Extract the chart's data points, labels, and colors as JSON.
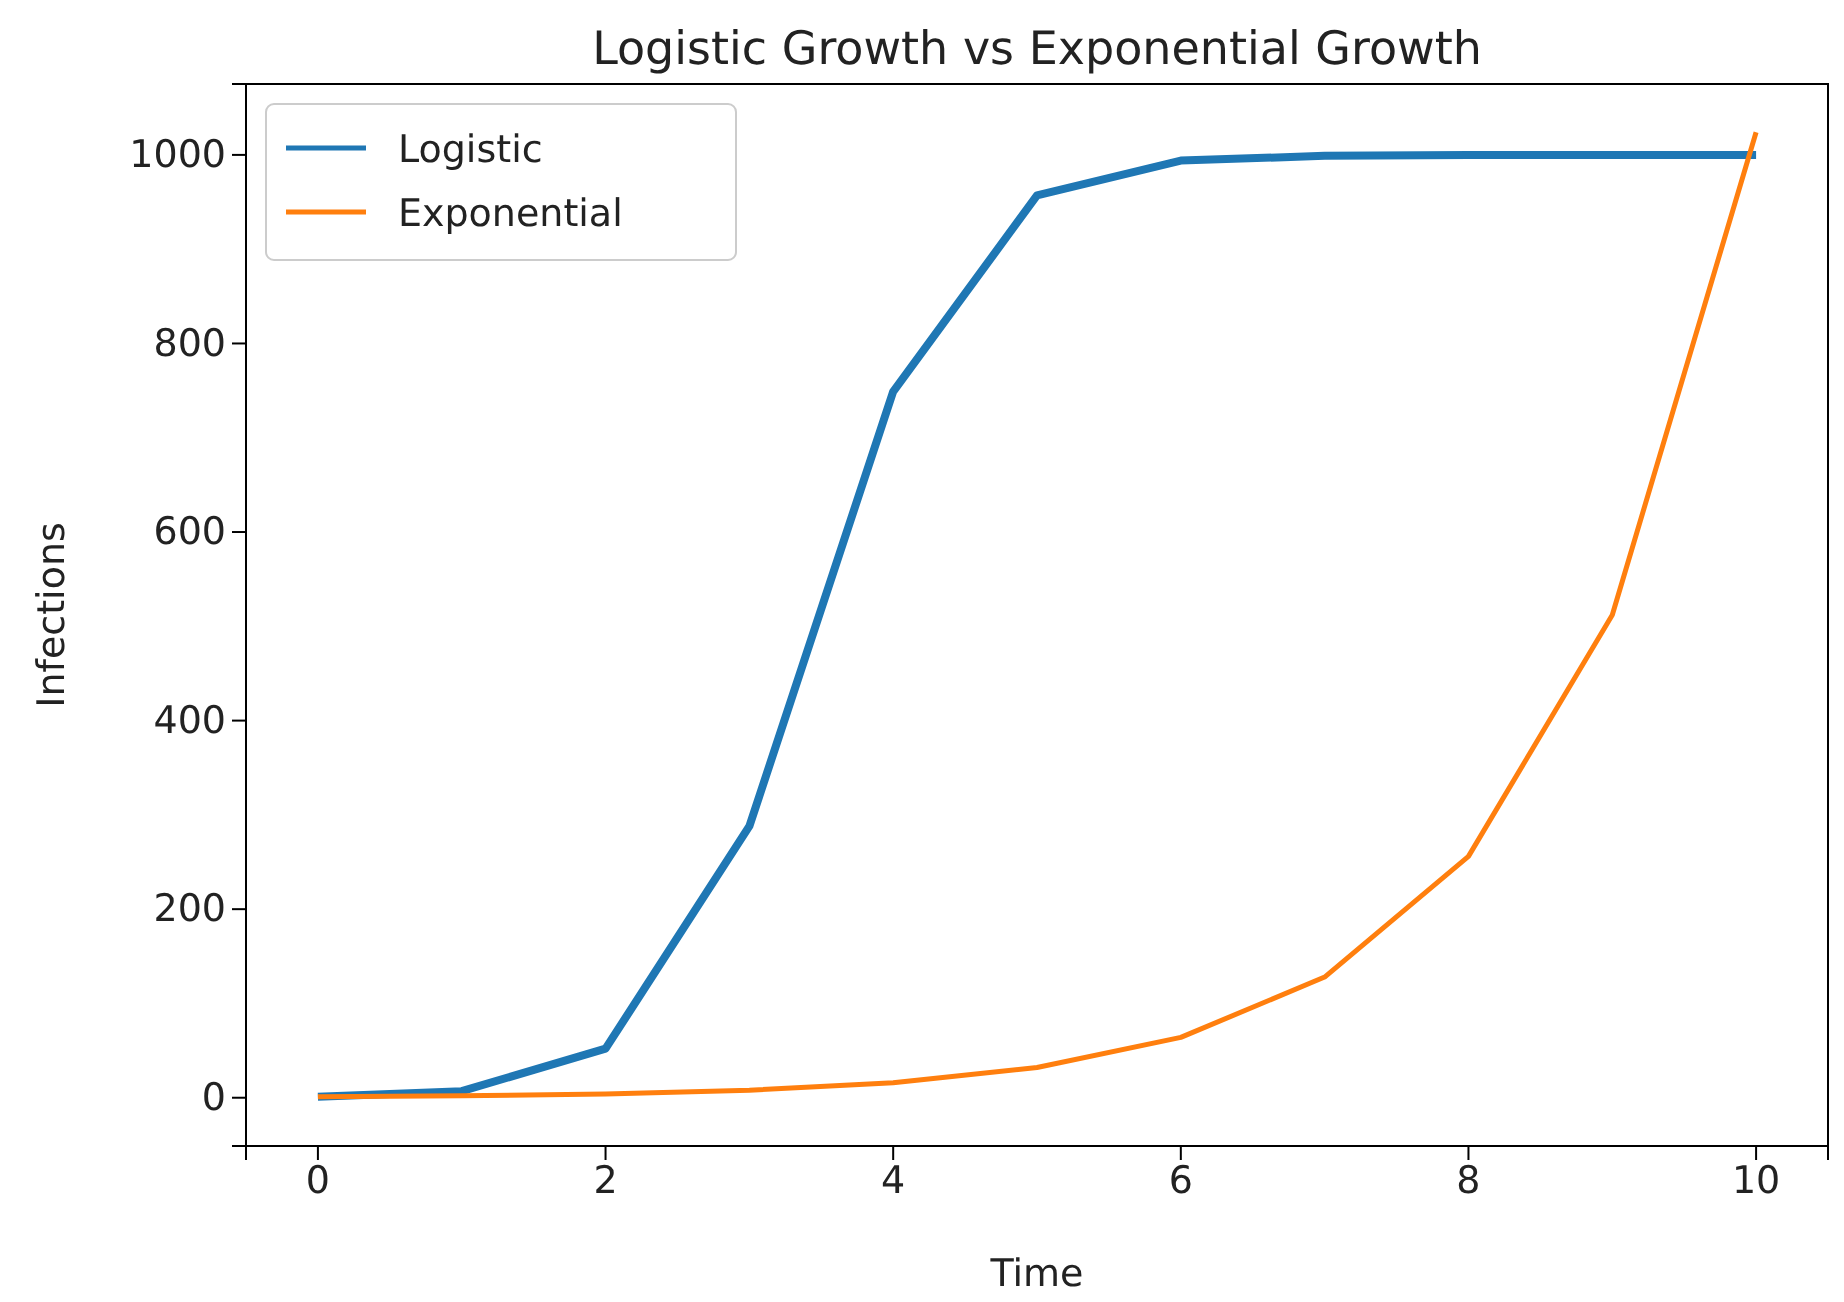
{
  "chart_data": {
    "type": "line",
    "title": "Logistic Growth vs Exponential Growth",
    "xlabel": "Time",
    "ylabel": "Infections",
    "x": [
      0,
      1,
      2,
      3,
      4,
      5,
      6,
      7,
      8,
      9,
      10
    ],
    "series": [
      {
        "name": "Logistic",
        "color": "#1f77b4",
        "values": [
          1,
          7,
          52,
          288,
          749,
          957,
          994,
          999,
          1000,
          1000,
          1000
        ]
      },
      {
        "name": "Exponential",
        "color": "#ff7f0e",
        "values": [
          1,
          2,
          4,
          8,
          16,
          32,
          64,
          128,
          256,
          512,
          1024
        ]
      }
    ],
    "xlim": [
      -0.5,
      10.5
    ],
    "ylim": [
      -51.2,
      1075.2
    ],
    "xticks": [
      0,
      2,
      4,
      6,
      8,
      10
    ],
    "yticks": [
      0,
      200,
      400,
      600,
      800,
      1000
    ],
    "legend": "top left",
    "marker": "none",
    "line_style": "solid",
    "grid": false
  }
}
